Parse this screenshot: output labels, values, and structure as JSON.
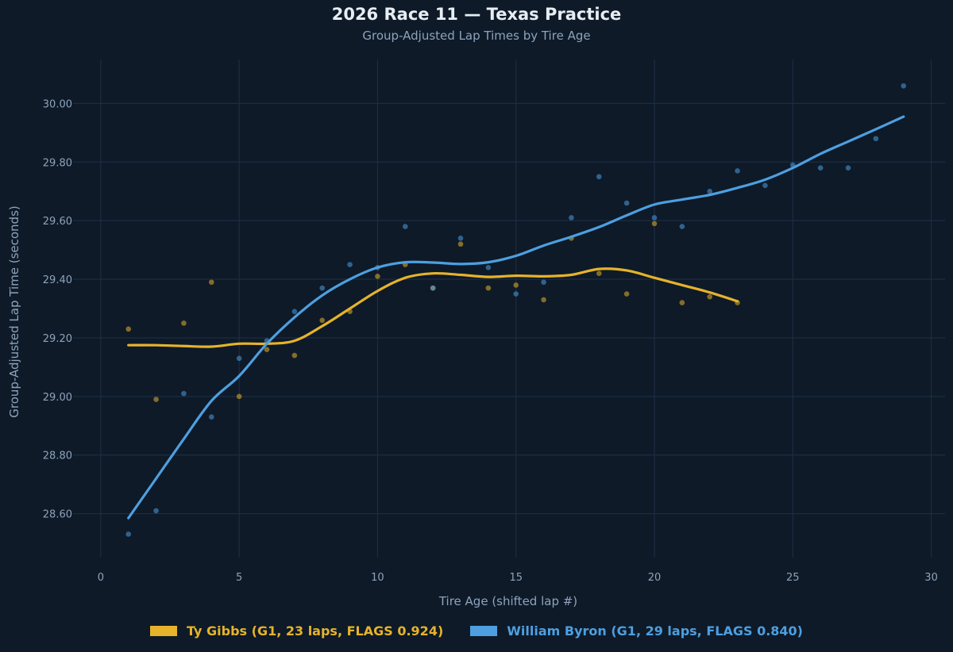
{
  "chart_data": {
    "type": "line",
    "title": "2026 Race 11 — Texas Practice",
    "subtitle": "Group-Adjusted Lap Times by Tire Age",
    "xlabel": "Tire Age (shifted lap #)",
    "ylabel": "Group-Adjusted Lap Time (seconds)",
    "xlim": [
      -1,
      30.5
    ],
    "ylim": [
      28.45,
      30.15
    ],
    "xticks": [
      0,
      5,
      10,
      15,
      20,
      25,
      30
    ],
    "xtick_labels": [
      "0",
      "5",
      "10",
      "15",
      "20",
      "25",
      "30"
    ],
    "yticks": [
      28.6,
      28.8,
      29.0,
      29.2,
      29.4,
      29.6,
      29.8,
      30.0
    ],
    "ytick_labels": [
      "28.60",
      "28.80",
      "29.00",
      "29.20",
      "29.40",
      "29.60",
      "29.80",
      "30.00"
    ],
    "grid": true,
    "legend_position": "bottom-center",
    "background_color": "#0e1a28",
    "grid_color": "#1e3048",
    "series": [
      {
        "name": "Ty Gibbs (G1, 23 laps, FLAGS 0.924)",
        "color": "#e6b32a",
        "scatter_x": [
          1,
          2,
          3,
          4,
          5,
          6,
          7,
          8,
          9,
          10,
          11,
          12,
          13,
          14,
          15,
          16,
          17,
          18,
          19,
          20,
          21,
          22,
          23
        ],
        "scatter_y": [
          29.23,
          28.99,
          29.25,
          29.39,
          29.0,
          29.16,
          29.14,
          29.26,
          29.29,
          29.41,
          29.45,
          29.37,
          29.52,
          29.37,
          29.38,
          29.33,
          29.54,
          29.42,
          29.35,
          29.59,
          29.32,
          29.34,
          29.32
        ],
        "trend_x": [
          1,
          2,
          3,
          4,
          5,
          6,
          7,
          8,
          9,
          10,
          11,
          12,
          13,
          14,
          15,
          16,
          17,
          18,
          19,
          20,
          21,
          22,
          23
        ],
        "trend_y": [
          29.175,
          29.175,
          29.172,
          29.17,
          29.18,
          29.18,
          29.19,
          29.24,
          29.3,
          29.36,
          29.405,
          29.42,
          29.415,
          29.408,
          29.412,
          29.41,
          29.415,
          29.435,
          29.43,
          29.405,
          29.38,
          29.355,
          29.325
        ]
      },
      {
        "name": "William Byron (G1, 29 laps, FLAGS 0.840)",
        "color": "#4d9fe0",
        "scatter_x": [
          1,
          2,
          3,
          4,
          5,
          6,
          7,
          8,
          9,
          10,
          11,
          12,
          13,
          14,
          15,
          16,
          17,
          18,
          19,
          20,
          21,
          22,
          23,
          24,
          25,
          26,
          27,
          28,
          29
        ],
        "scatter_y": [
          28.53,
          28.61,
          29.01,
          28.93,
          29.13,
          29.19,
          29.29,
          29.37,
          29.45,
          29.44,
          29.58,
          29.37,
          29.54,
          29.44,
          29.35,
          29.39,
          29.61,
          29.75,
          29.66,
          29.61,
          29.58,
          29.7,
          29.77,
          29.72,
          29.79,
          29.78,
          29.78,
          29.88,
          30.06
        ],
        "trend_x": [
          1,
          2,
          3,
          4,
          5,
          6,
          7,
          8,
          9,
          10,
          11,
          12,
          13,
          14,
          15,
          16,
          17,
          18,
          19,
          20,
          21,
          22,
          23,
          24,
          25,
          26,
          27,
          28,
          29
        ],
        "trend_y": [
          28.585,
          28.72,
          28.855,
          28.985,
          29.07,
          29.18,
          29.27,
          29.345,
          29.4,
          29.44,
          29.458,
          29.457,
          29.452,
          29.458,
          29.48,
          29.515,
          29.545,
          29.578,
          29.618,
          29.655,
          29.672,
          29.688,
          29.712,
          29.74,
          29.78,
          29.828,
          29.87,
          29.912,
          29.955
        ]
      }
    ]
  }
}
